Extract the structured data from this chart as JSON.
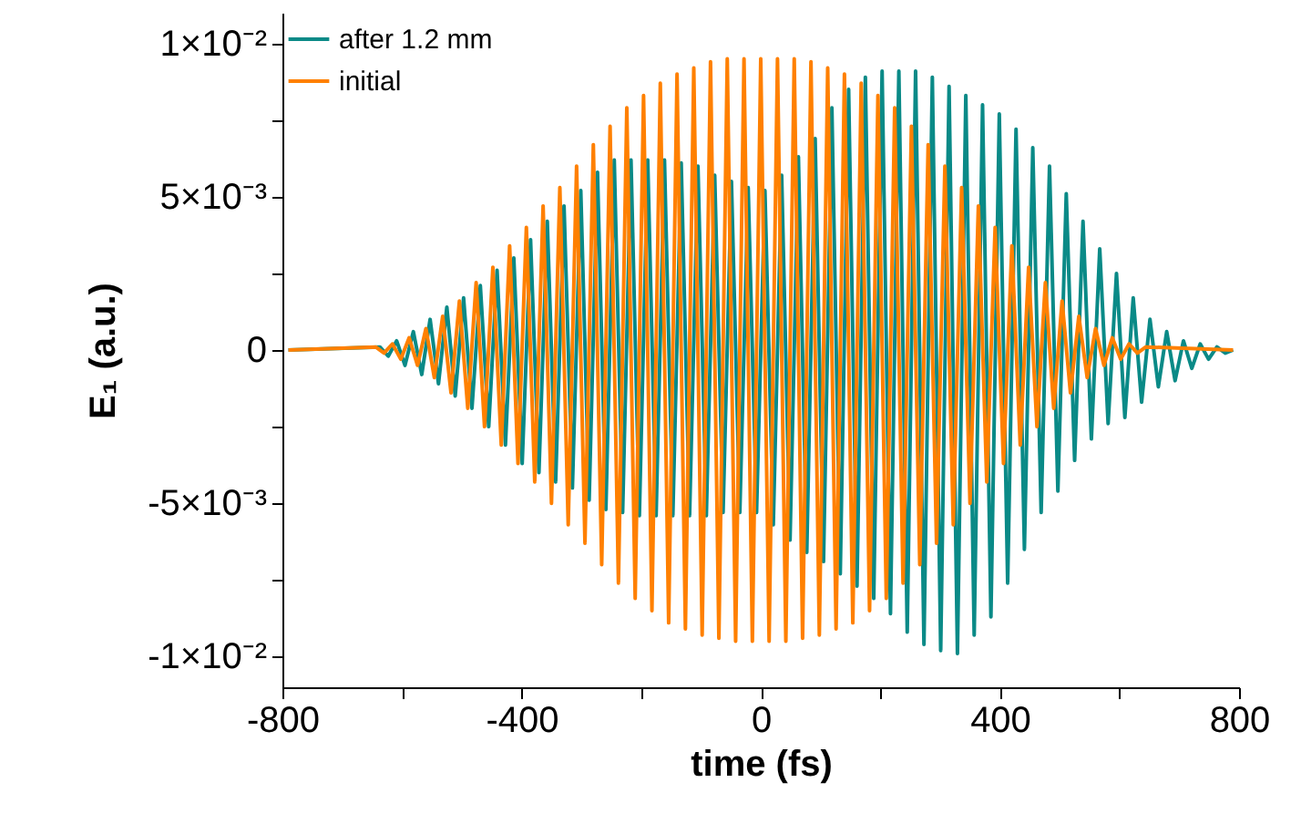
{
  "chart_data": {
    "type": "line",
    "xlabel": "time (fs)",
    "ylabel": "E₁ (a.u.)",
    "xlim": [
      -800,
      800
    ],
    "ylim": [
      -0.011,
      0.011
    ],
    "xticks": [
      -800,
      {
        "value": -600,
        "label": null
      },
      -400,
      {
        "value": -200,
        "label": null
      },
      0,
      {
        "value": 200,
        "label": null
      },
      400,
      {
        "value": 600,
        "label": null
      },
      800
    ],
    "yticks": [
      {
        "value": -0.01,
        "label": "-1×10⁻²"
      },
      {
        "value": -0.0075,
        "label": null
      },
      {
        "value": -0.005,
        "label": "-5×10⁻³"
      },
      {
        "value": -0.0025,
        "label": null
      },
      0,
      {
        "value": 0.0025,
        "label": null
      },
      {
        "value": 0.005,
        "label": "5×10⁻³"
      },
      {
        "value": 0.0075,
        "label": null
      },
      {
        "value": 0.01,
        "label": "1×10⁻²"
      }
    ],
    "legend": "top left",
    "series": [
      {
        "name": "after 1.2 mm",
        "color": "#0a8a87",
        "x": [
          -790,
          -637,
          -623,
          -609,
          -595,
          -581,
          -567,
          -553,
          -539,
          -525,
          -511,
          -497,
          -483,
          -469,
          -455,
          -441,
          -427,
          -413,
          -399,
          -385,
          -371,
          -357,
          -343,
          -329,
          -315,
          -301,
          -287,
          -273,
          -259,
          -245,
          -231,
          -217,
          -203,
          -189,
          -175,
          -161,
          -147,
          -133,
          -119,
          -105,
          -91,
          -77,
          -63,
          -49,
          -35,
          -21,
          -7,
          7,
          21,
          35,
          49,
          63,
          77,
          91,
          105,
          119,
          133,
          147,
          161,
          175,
          189,
          203,
          217,
          231,
          245,
          259,
          273,
          287,
          301,
          315,
          329,
          343,
          357,
          371,
          385,
          399,
          413,
          427,
          441,
          455,
          469,
          483,
          497,
          511,
          525,
          539,
          553,
          567,
          581,
          595,
          609,
          623,
          637,
          651,
          665,
          679,
          693,
          707,
          721,
          735,
          749,
          763,
          777,
          790
        ],
        "values": [
          0,
          0.0001,
          -0.0002,
          0.0003,
          -0.0005,
          0.0006,
          -0.0008,
          0.001,
          -0.0011,
          0.0014,
          -0.0015,
          0.0017,
          -0.0019,
          0.0021,
          -0.0025,
          0.0026,
          -0.0031,
          0.003,
          -0.0037,
          0.0036,
          -0.004,
          0.0042,
          -0.0043,
          0.0047,
          -0.0045,
          0.0052,
          -0.0049,
          0.0058,
          -0.0052,
          0.0062,
          -0.0053,
          0.0062,
          -0.0054,
          0.0062,
          -0.0054,
          0.0062,
          -0.0054,
          0.0061,
          -0.0054,
          0.006,
          -0.0054,
          0.0057,
          -0.0053,
          0.0055,
          -0.0053,
          0.0053,
          -0.0053,
          0.0052,
          -0.0057,
          0.0057,
          -0.0062,
          0.0063,
          -0.0066,
          0.0069,
          -0.0069,
          0.0079,
          -0.0073,
          0.0085,
          -0.0077,
          0.0089,
          -0.0081,
          0.0091,
          -0.0086,
          0.0091,
          -0.0092,
          0.0091,
          -0.0096,
          0.0089,
          -0.0098,
          0.0086,
          -0.0099,
          0.0083,
          -0.0093,
          0.008,
          -0.0087,
          0.0077,
          -0.0076,
          0.0072,
          -0.0065,
          0.0066,
          -0.0053,
          0.006,
          -0.0046,
          0.0051,
          -0.0036,
          0.0042,
          -0.0029,
          0.0033,
          -0.0024,
          0.0025,
          -0.0022,
          0.0017,
          -0.0017,
          0.001,
          -0.0012,
          0.0006,
          -0.001,
          0.0003,
          -0.0006,
          0.0002,
          -0.0003,
          0.0001,
          -0.0001,
          0
        ]
      },
      {
        "name": "initial",
        "color": "#ff8000",
        "x": [
          -790,
          -644,
          -630,
          -616,
          -602,
          -588,
          -574,
          -560,
          -546,
          -532,
          -518,
          -504,
          -490,
          -476,
          -462,
          -448,
          -434,
          -420,
          -406,
          -392,
          -378,
          -364,
          -350,
          -336,
          -322,
          -308,
          -294,
          -280,
          -266,
          -252,
          -238,
          -224,
          -210,
          -196,
          -182,
          -168,
          -154,
          -140,
          -126,
          -112,
          -98,
          -84,
          -70,
          -56,
          -42,
          -28,
          -14,
          0,
          14,
          28,
          42,
          56,
          70,
          84,
          98,
          112,
          126,
          140,
          154,
          168,
          182,
          196,
          210,
          224,
          238,
          252,
          266,
          280,
          294,
          308,
          322,
          336,
          350,
          364,
          378,
          392,
          406,
          420,
          434,
          448,
          462,
          476,
          490,
          504,
          518,
          532,
          546,
          560,
          574,
          588,
          602,
          616,
          630,
          644,
          790
        ],
        "values": [
          0,
          0.0001,
          -0.0001,
          0.0002,
          -0.0003,
          0.0004,
          -0.0005,
          0.0007,
          -0.0009,
          0.0011,
          -0.0014,
          0.0016,
          -0.0019,
          0.0022,
          -0.0025,
          0.0027,
          -0.0031,
          0.0034,
          -0.0037,
          0.004,
          -0.0043,
          0.0047,
          -0.005,
          0.0053,
          -0.0057,
          0.006,
          -0.0063,
          0.0067,
          -0.007,
          0.0073,
          -0.0076,
          0.0079,
          -0.0081,
          0.0083,
          -0.0085,
          0.0087,
          -0.0089,
          0.009,
          -0.0091,
          0.0092,
          -0.0093,
          0.0094,
          -0.0094,
          0.0095,
          -0.0095,
          0.0095,
          -0.0095,
          0.0095,
          -0.0095,
          0.0095,
          -0.0095,
          0.0095,
          -0.0094,
          0.0094,
          -0.0093,
          0.0092,
          -0.0091,
          0.009,
          -0.0089,
          0.0087,
          -0.0085,
          0.0083,
          -0.0081,
          0.0079,
          -0.0076,
          0.0073,
          -0.007,
          0.0067,
          -0.0063,
          0.006,
          -0.0057,
          0.0053,
          -0.005,
          0.0047,
          -0.0043,
          0.004,
          -0.0037,
          0.0034,
          -0.0031,
          0.0027,
          -0.0025,
          0.0022,
          -0.0019,
          0.0016,
          -0.0014,
          0.0011,
          -0.0009,
          0.0007,
          -0.0005,
          0.0004,
          -0.0003,
          0.0002,
          -0.0001,
          0.0001,
          0
        ]
      }
    ]
  }
}
